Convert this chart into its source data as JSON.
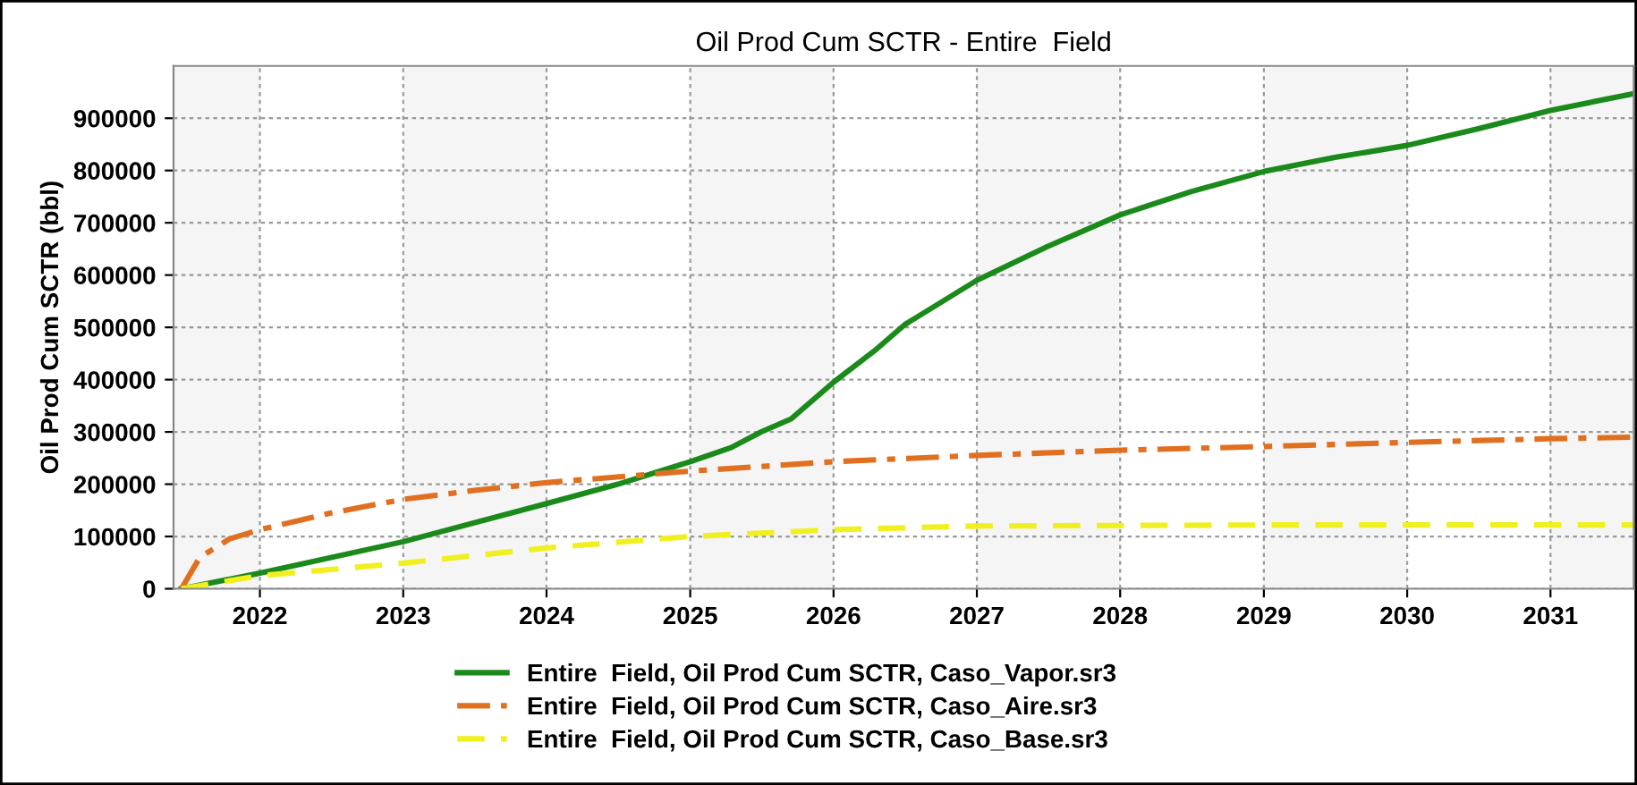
{
  "chart_data": {
    "type": "line",
    "title": "Oil Prod Cum SCTR - Entire  Field",
    "ylabel": "Oil Prod Cum SCTR (bbl)",
    "xlim": [
      "2021-05-26",
      "2031-08-01"
    ],
    "xticks": [
      {
        "value": "2022-01-01",
        "label": "2022"
      },
      {
        "value": "2023-01-01",
        "label": "2023"
      },
      {
        "value": "2024-01-01",
        "label": "2024"
      },
      {
        "value": "2025-01-01",
        "label": "2025"
      },
      {
        "value": "2026-01-01",
        "label": "2026"
      },
      {
        "value": "2027-01-01",
        "label": "2027"
      },
      {
        "value": "2028-01-01",
        "label": "2028"
      },
      {
        "value": "2029-01-01",
        "label": "2029"
      },
      {
        "value": "2030-01-01",
        "label": "2030"
      },
      {
        "value": "2031-01-01",
        "label": "2031"
      }
    ],
    "ylim": [
      0,
      1000000
    ],
    "yticks": [
      0,
      100000,
      200000,
      300000,
      400000,
      500000,
      600000,
      700000,
      800000,
      900000
    ],
    "grid": true,
    "legend": "bottom",
    "bands": [
      {
        "axis": "x",
        "from": "2021-05-26",
        "to": "2022-01-01",
        "color": "#f5f5f5"
      },
      {
        "axis": "x",
        "from": "2023-01-01",
        "to": "2024-01-01",
        "color": "#f5f5f5"
      },
      {
        "axis": "x",
        "from": "2025-01-01",
        "to": "2026-01-01",
        "color": "#f5f5f5"
      },
      {
        "axis": "x",
        "from": "2027-01-01",
        "to": "2028-01-01",
        "color": "#f5f5f5"
      },
      {
        "axis": "x",
        "from": "2029-01-01",
        "to": "2030-01-01",
        "color": "#f5f5f5"
      },
      {
        "axis": "x",
        "from": "2031-01-01",
        "to": "2031-08-01",
        "color": "#f5f5f5"
      }
    ],
    "series": [
      {
        "name": "Entire  Field, Oil Prod Cum SCTR, Caso_Vapor.sr3",
        "color": "#1a8a1a",
        "line_style": "solid",
        "x": [
          "2021-06-15",
          "2022-01-01",
          "2023-01-01",
          "2024-01-01",
          "2024-07-01",
          "2025-01-01",
          "2025-04-15",
          "2025-07-01",
          "2025-09-15",
          "2026-01-01",
          "2026-04-15",
          "2026-07-01",
          "2027-01-01",
          "2027-07-01",
          "2028-01-01",
          "2028-07-01",
          "2029-01-01",
          "2029-07-01",
          "2030-01-01",
          "2030-07-01",
          "2031-01-01",
          "2031-08-01"
        ],
        "values": [
          0,
          30000,
          90000,
          163000,
          200000,
          243000,
          270000,
          300000,
          325000,
          395000,
          455000,
          505000,
          590000,
          655000,
          715000,
          760000,
          798000,
          825000,
          848000,
          880000,
          915000,
          947000
        ]
      },
      {
        "name": "Entire  Field, Oil Prod Cum SCTR, Caso_Aire.sr3",
        "color": "#e07020",
        "line_style": "dashdot",
        "x": [
          "2021-06-15",
          "2021-08-01",
          "2021-10-15",
          "2022-01-01",
          "2022-07-01",
          "2023-01-01",
          "2023-07-01",
          "2024-01-01",
          "2025-01-01",
          "2026-01-01",
          "2027-01-01",
          "2028-01-01",
          "2029-01-01",
          "2030-01-01",
          "2031-01-01",
          "2031-08-01"
        ],
        "values": [
          0,
          60000,
          95000,
          113000,
          145000,
          171000,
          188000,
          203000,
          225000,
          243000,
          255000,
          265000,
          272000,
          280000,
          287000,
          290000
        ]
      },
      {
        "name": "Entire  Field, Oil Prod Cum SCTR, Caso_Base.sr3",
        "color": "#f0f020",
        "line_style": "dashed",
        "x": [
          "2021-06-15",
          "2022-01-01",
          "2023-01-01",
          "2024-01-01",
          "2025-01-01",
          "2026-01-01",
          "2027-01-01",
          "2028-01-01",
          "2029-01-01",
          "2030-01-01",
          "2031-01-01",
          "2031-08-01"
        ],
        "values": [
          0,
          25000,
          49000,
          78000,
          100000,
          113000,
          120000,
          121000,
          122000,
          122000,
          122000,
          122000
        ]
      }
    ]
  }
}
